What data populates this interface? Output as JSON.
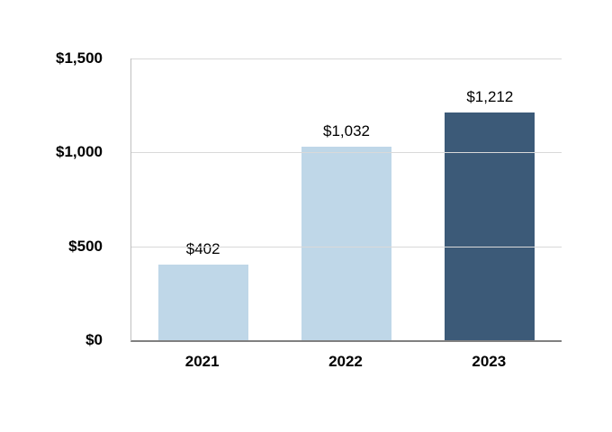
{
  "chart_data": {
    "type": "bar",
    "title": "",
    "xlabel": "",
    "ylabel": "",
    "categories": [
      "2021",
      "2022",
      "2023"
    ],
    "values": [
      402,
      1032,
      1212
    ],
    "data_labels": [
      "$402",
      "$1,032",
      "$1,212"
    ],
    "ylim": [
      0,
      1500
    ],
    "yticks": [
      0,
      500,
      1000,
      1500
    ],
    "ytick_labels": [
      "$0",
      "$500",
      "$1,000",
      "$1,500"
    ],
    "grid": true,
    "legend": false,
    "bar_colors": [
      "#BFD7E8",
      "#BFD7E8",
      "#3C5A78"
    ],
    "gridline_color": "#D9D9D9",
    "axis_color": "#808080",
    "label_color": "#000000"
  }
}
